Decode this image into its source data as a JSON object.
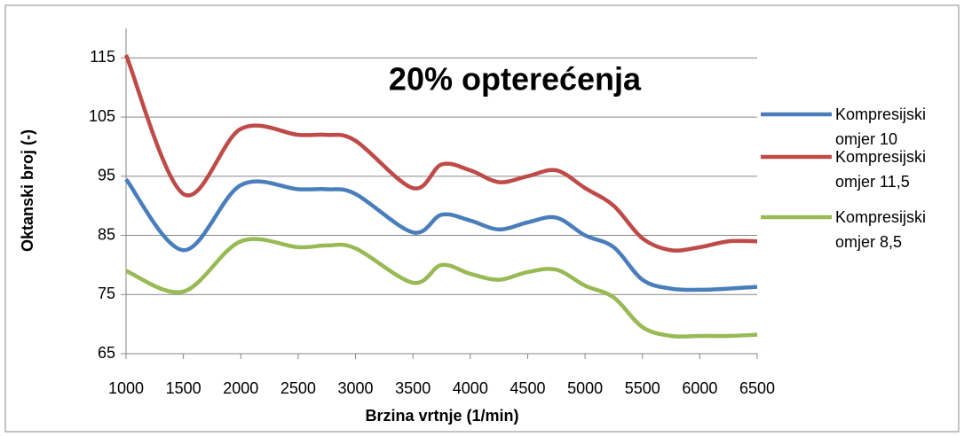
{
  "chart_data": {
    "type": "line",
    "title": "20% opterećenja",
    "x_label": "Brzina vrtnje (1/min)",
    "y_label": "Oktanski broj (-)",
    "x": [
      1000,
      1500,
      2000,
      2500,
      2750,
      3000,
      3500,
      3750,
      4000,
      4250,
      4500,
      4750,
      5000,
      5250,
      5500,
      5750,
      6000,
      6250,
      6500
    ],
    "series": [
      {
        "name": "Kompresijski omjer 10",
        "color": "#4a7ebb",
        "values": [
          94.5,
          82.5,
          93.5,
          92.8,
          92.8,
          92,
          85.5,
          88.5,
          87.5,
          86,
          87.2,
          88,
          85,
          83,
          77.5,
          76,
          75.8,
          76,
          76.3
        ]
      },
      {
        "name": "Kompresijski omjer 11,5",
        "color": "#be4b48",
        "values": [
          115.5,
          92,
          103,
          102,
          102,
          101,
          93,
          97,
          96,
          94,
          95,
          96,
          93,
          90,
          84.5,
          82.5,
          83,
          84,
          84
        ]
      },
      {
        "name": "Kompresijski omjer 8,5",
        "color": "#98b954",
        "values": [
          79,
          75.5,
          84,
          83,
          83.3,
          82.8,
          77,
          80,
          78.5,
          77.5,
          78.8,
          79.2,
          76.5,
          74.5,
          69.5,
          68,
          68,
          68,
          68.2
        ]
      }
    ],
    "xlim": [
      1000,
      6500
    ],
    "xticks": [
      1000,
      1500,
      2000,
      2500,
      3000,
      3500,
      4000,
      4500,
      5000,
      5500,
      6000,
      6500
    ],
    "ylim": [
      65,
      120
    ],
    "yticks": [
      65,
      75,
      85,
      95,
      105,
      115
    ],
    "grid": true,
    "legend": "right"
  }
}
